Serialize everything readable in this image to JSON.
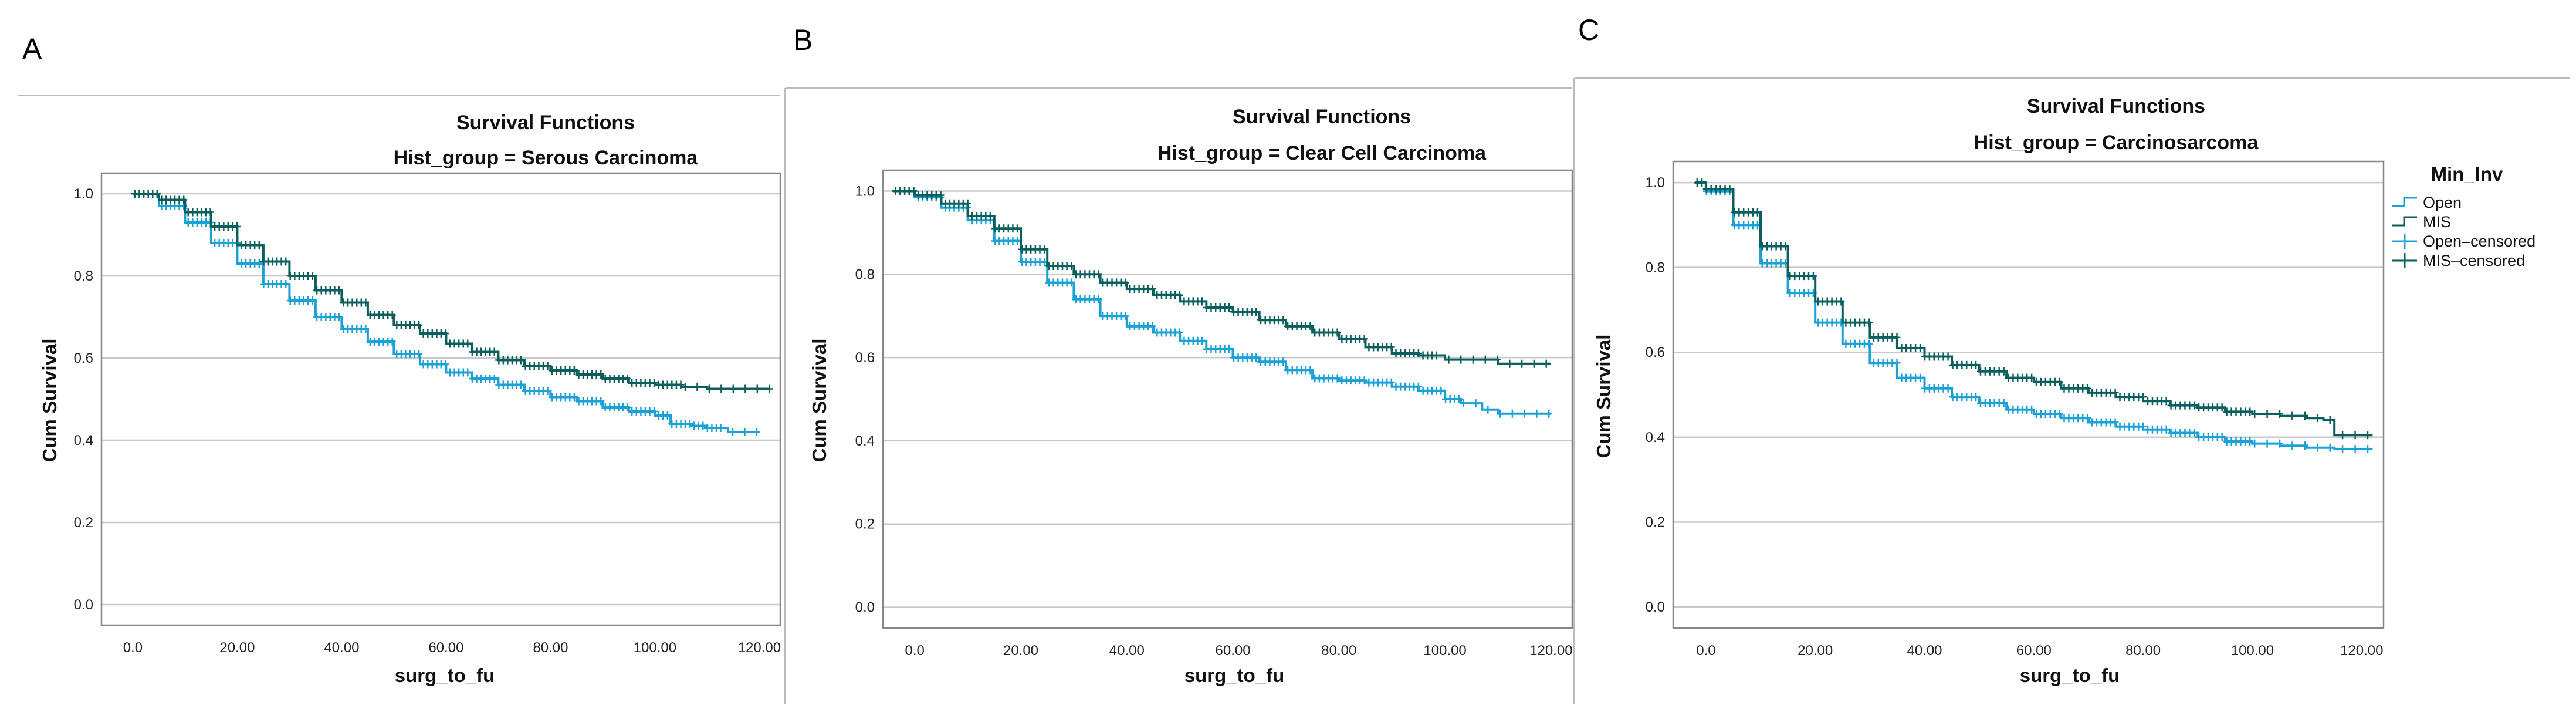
{
  "colors": {
    "open": "#1aa2d8",
    "mis": "#0b5e5e"
  },
  "legend": {
    "title": "Min_Inv",
    "entries": [
      {
        "label": "Open",
        "series": "open",
        "kind": "step"
      },
      {
        "label": "MIS",
        "series": "mis",
        "kind": "step"
      },
      {
        "label": "Open–censored",
        "series": "open",
        "kind": "censored"
      },
      {
        "label": "MIS–censored",
        "series": "mis",
        "kind": "censored"
      }
    ]
  },
  "chart_data": [
    {
      "panel": "A",
      "type": "line",
      "title": "Survival Functions",
      "subtitle": "Hist_group = Serous Carcinoma",
      "xlabel": "surg_to_fu",
      "ylabel": "Cum Survival",
      "xlim": [
        -6,
        124
      ],
      "ylim": [
        -0.05,
        1.05
      ],
      "xticks": [
        "0.0",
        "20.00",
        "40.00",
        "60.00",
        "80.00",
        "100.00",
        "120.00"
      ],
      "yticks": [
        "0.0",
        "0.2",
        "0.4",
        "0.6",
        "0.8",
        "1.0"
      ],
      "grid": true,
      "series": [
        {
          "name": "Open",
          "key": "open",
          "x": [
            0,
            5,
            10,
            15,
            20,
            25,
            30,
            35,
            40,
            45,
            50,
            55,
            60,
            65,
            70,
            75,
            80,
            85,
            90,
            95,
            100,
            103,
            107,
            110,
            114,
            120
          ],
          "y": [
            1.0,
            0.97,
            0.93,
            0.88,
            0.83,
            0.78,
            0.74,
            0.7,
            0.67,
            0.64,
            0.61,
            0.585,
            0.565,
            0.55,
            0.535,
            0.52,
            0.505,
            0.495,
            0.48,
            0.47,
            0.46,
            0.44,
            0.435,
            0.43,
            0.42,
            0.42
          ],
          "censor_from": 112
        },
        {
          "name": "MIS",
          "key": "mis",
          "x": [
            0,
            5,
            10,
            15,
            20,
            25,
            30,
            35,
            40,
            45,
            50,
            55,
            60,
            65,
            70,
            75,
            80,
            85,
            90,
            95,
            100,
            105,
            110,
            115,
            122
          ],
          "y": [
            1.0,
            0.985,
            0.955,
            0.92,
            0.875,
            0.835,
            0.8,
            0.765,
            0.735,
            0.705,
            0.68,
            0.66,
            0.635,
            0.615,
            0.595,
            0.58,
            0.57,
            0.56,
            0.55,
            0.54,
            0.535,
            0.53,
            0.525,
            0.525,
            0.525
          ],
          "censor_from": 105
        }
      ]
    },
    {
      "panel": "B",
      "type": "line",
      "title": "Survival Functions",
      "subtitle": "Hist_group = Clear Cell Carcinoma",
      "xlabel": "surg_to_fu",
      "ylabel": "Cum Survival",
      "xlim": [
        -6,
        124
      ],
      "ylim": [
        -0.05,
        1.05
      ],
      "xticks": [
        "0.0",
        "20.00",
        "40.00",
        "60.00",
        "80.00",
        "100.00",
        "120.00"
      ],
      "yticks": [
        "0.0",
        "0.2",
        "0.4",
        "0.6",
        "0.8",
        "1.0"
      ],
      "grid": true,
      "series": [
        {
          "name": "Open",
          "key": "open",
          "x": [
            -4,
            0,
            5,
            10,
            15,
            20,
            25,
            30,
            35,
            40,
            45,
            50,
            55,
            60,
            65,
            70,
            75,
            80,
            85,
            90,
            95,
            100,
            103,
            107,
            110,
            120
          ],
          "y": [
            1.0,
            0.985,
            0.96,
            0.93,
            0.88,
            0.83,
            0.78,
            0.74,
            0.7,
            0.675,
            0.66,
            0.64,
            0.62,
            0.6,
            0.59,
            0.57,
            0.55,
            0.545,
            0.54,
            0.53,
            0.52,
            0.5,
            0.49,
            0.475,
            0.465,
            0.465
          ],
          "censor_from": 103
        },
        {
          "name": "MIS",
          "key": "mis",
          "x": [
            -4,
            0,
            5,
            10,
            15,
            20,
            25,
            30,
            35,
            40,
            45,
            50,
            55,
            60,
            65,
            70,
            75,
            80,
            85,
            90,
            95,
            100,
            110,
            120
          ],
          "y": [
            1.0,
            0.99,
            0.97,
            0.94,
            0.91,
            0.86,
            0.82,
            0.8,
            0.78,
            0.765,
            0.75,
            0.735,
            0.72,
            0.71,
            0.69,
            0.675,
            0.66,
            0.645,
            0.625,
            0.61,
            0.605,
            0.595,
            0.585,
            0.585
          ],
          "censor_from": 98
        }
      ]
    },
    {
      "panel": "C",
      "type": "line",
      "title": "Survival Functions",
      "subtitle": "Hist_group = Carcinosarcoma",
      "xlabel": "surg_to_fu",
      "ylabel": "Cum Survival",
      "xlim": [
        -6,
        124
      ],
      "ylim": [
        -0.05,
        1.05
      ],
      "xticks": [
        "0.0",
        "20.00",
        "40.00",
        "60.00",
        "80.00",
        "100.00",
        "120.00"
      ],
      "yticks": [
        "0.0",
        "0.2",
        "0.4",
        "0.6",
        "0.8",
        "1.0"
      ],
      "grid": true,
      "legend_position": "right",
      "series": [
        {
          "name": "Open",
          "key": "open",
          "x": [
            -2,
            0,
            5,
            10,
            15,
            20,
            25,
            30,
            35,
            40,
            45,
            50,
            55,
            60,
            65,
            70,
            75,
            80,
            85,
            90,
            95,
            100,
            105,
            110,
            115,
            122
          ],
          "y": [
            1.0,
            0.98,
            0.9,
            0.81,
            0.74,
            0.67,
            0.62,
            0.575,
            0.54,
            0.515,
            0.495,
            0.48,
            0.465,
            0.455,
            0.445,
            0.435,
            0.425,
            0.418,
            0.41,
            0.4,
            0.39,
            0.385,
            0.38,
            0.375,
            0.372,
            0.372
          ],
          "censor_from": 100
        },
        {
          "name": "MIS",
          "key": "mis",
          "x": [
            -2,
            0,
            5,
            10,
            15,
            20,
            25,
            30,
            35,
            40,
            45,
            50,
            55,
            60,
            65,
            70,
            75,
            80,
            85,
            90,
            95,
            100,
            105,
            110,
            113,
            115,
            122
          ],
          "y": [
            1.0,
            0.985,
            0.93,
            0.85,
            0.78,
            0.72,
            0.67,
            0.635,
            0.61,
            0.59,
            0.57,
            0.555,
            0.54,
            0.53,
            0.515,
            0.505,
            0.495,
            0.485,
            0.475,
            0.47,
            0.46,
            0.455,
            0.45,
            0.445,
            0.44,
            0.405,
            0.405
          ],
          "censor_from": 100
        }
      ]
    }
  ]
}
